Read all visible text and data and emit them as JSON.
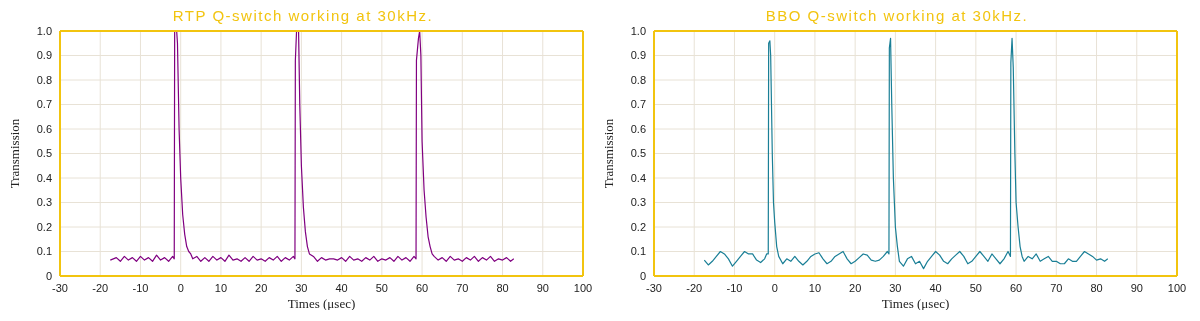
{
  "chart_data": [
    {
      "type": "line",
      "title": "RTP Q-switch working at 30kHz.",
      "xlabel": "Times (μsec)",
      "ylabel": "Transmission",
      "grid": true,
      "legend": false,
      "marker": "none",
      "line_style": "solid",
      "xlim": [
        -30,
        100
      ],
      "xticks": [
        -30,
        -20,
        -10,
        0,
        10,
        20,
        30,
        40,
        50,
        60,
        70,
        80,
        90,
        100
      ],
      "ylim": [
        0,
        1
      ],
      "yticks": [
        0,
        0.1,
        0.2,
        0.3,
        0.4,
        0.5,
        0.6,
        0.7,
        0.8,
        0.9,
        {
          "value": 1,
          "label": "1.0"
        }
      ],
      "series": [
        {
          "color": "#800080",
          "x": [
            -17.5,
            -16,
            -15,
            -14,
            -13,
            -12,
            -11,
            -10,
            -9,
            -8,
            -7,
            -6,
            -5,
            -4,
            -3,
            -2,
            -1.6,
            -1.5,
            -1,
            -0.8,
            -0.4,
            0,
            0.5,
            1,
            1.5,
            2,
            2.5,
            3,
            4,
            5,
            6,
            7,
            8,
            9,
            10,
            11,
            12,
            13,
            14,
            15,
            16,
            17,
            18,
            19,
            20,
            21,
            22,
            23,
            24,
            25,
            26,
            27,
            28,
            28.4,
            28.5,
            28.8,
            29.3,
            29.6,
            30,
            30.5,
            31,
            31.5,
            32,
            33,
            34,
            35,
            36,
            37,
            38,
            39,
            40,
            41,
            42,
            43,
            44,
            45,
            46,
            47,
            48,
            49,
            50,
            51,
            52,
            53,
            54,
            55,
            56,
            57,
            58,
            58.5,
            58.6,
            59.1,
            59.4,
            59.7,
            60,
            60.5,
            61,
            61.5,
            62,
            62.5,
            63,
            64,
            65,
            66,
            67,
            68,
            69,
            70,
            71,
            72,
            73,
            74,
            75,
            76,
            77,
            78,
            79,
            80,
            81,
            82,
            82.8
          ],
          "values": [
            0.065,
            0.075,
            0.06,
            0.08,
            0.065,
            0.075,
            0.06,
            0.08,
            0.065,
            0.075,
            0.06,
            0.085,
            0.065,
            0.075,
            0.06,
            0.08,
            0.07,
            1.0,
            1.0,
            0.95,
            0.6,
            0.4,
            0.25,
            0.17,
            0.12,
            0.1,
            0.09,
            0.07,
            0.08,
            0.06,
            0.075,
            0.06,
            0.08,
            0.065,
            0.075,
            0.06,
            0.085,
            0.065,
            0.07,
            0.06,
            0.075,
            0.06,
            0.08,
            0.065,
            0.07,
            0.06,
            0.075,
            0.065,
            0.08,
            0.06,
            0.075,
            0.065,
            0.08,
            0.07,
            0.88,
            1.0,
            1.0,
            0.7,
            0.45,
            0.28,
            0.18,
            0.12,
            0.09,
            0.08,
            0.06,
            0.075,
            0.065,
            0.07,
            0.07,
            0.065,
            0.075,
            0.06,
            0.08,
            0.065,
            0.07,
            0.06,
            0.075,
            0.065,
            0.08,
            0.06,
            0.07,
            0.065,
            0.075,
            0.06,
            0.08,
            0.065,
            0.075,
            0.06,
            0.08,
            0.07,
            0.88,
            0.97,
            1.0,
            0.9,
            0.55,
            0.35,
            0.24,
            0.16,
            0.12,
            0.09,
            0.08,
            0.065,
            0.075,
            0.06,
            0.08,
            0.065,
            0.07,
            0.06,
            0.075,
            0.065,
            0.08,
            0.06,
            0.075,
            0.065,
            0.08,
            0.06,
            0.07,
            0.065,
            0.075,
            0.06,
            0.07
          ]
        }
      ]
    },
    {
      "type": "line",
      "title": "BBO Q-switch working at 30kHz.",
      "xlabel": "Times (μsec)",
      "ylabel": "Transmission",
      "grid": true,
      "legend": false,
      "marker": "none",
      "line_style": "solid",
      "xlim": [
        -30,
        100
      ],
      "xticks": [
        -30,
        -20,
        -10,
        0,
        10,
        20,
        30,
        40,
        50,
        60,
        70,
        80,
        90,
        100
      ],
      "ylim": [
        0,
        1
      ],
      "yticks": [
        0,
        0.1,
        0.2,
        0.3,
        0.4,
        0.5,
        0.6,
        0.7,
        0.8,
        0.9,
        {
          "value": 1,
          "label": "1.0"
        }
      ],
      "series": [
        {
          "color": "#1a7f96",
          "x": [
            -17.5,
            -16.5,
            -15.5,
            -14.5,
            -13.5,
            -12.5,
            -11.5,
            -10.5,
            -9.5,
            -8.5,
            -7.5,
            -6.5,
            -5.5,
            -4.5,
            -3.5,
            -2.5,
            -2,
            -1.6,
            -1.5,
            -1.2,
            -1,
            -0.6,
            -0.3,
            0,
            0.5,
            1,
            2,
            3,
            4,
            5,
            6,
            7,
            8,
            9,
            10,
            11,
            12,
            13,
            14,
            15,
            16,
            17,
            18,
            19,
            20,
            21,
            22,
            23,
            24,
            25,
            26,
            27,
            28,
            28.4,
            28.5,
            28.8,
            29.1,
            29.5,
            30,
            30.5,
            31,
            32,
            33,
            34,
            35,
            36,
            37,
            38,
            39,
            40,
            41,
            42,
            43,
            44,
            45,
            46,
            47,
            48,
            49,
            50,
            51,
            52,
            53,
            54,
            55,
            56,
            57,
            58,
            58.6,
            58.7,
            59,
            59.3,
            59.7,
            60,
            60.5,
            61,
            61.5,
            62,
            63,
            64,
            65,
            66,
            67,
            68,
            69,
            70,
            71,
            72,
            73,
            74,
            75,
            76,
            77,
            78,
            79,
            80,
            81,
            82,
            82.8
          ],
          "values": [
            0.065,
            0.045,
            0.06,
            0.08,
            0.1,
            0.09,
            0.07,
            0.04,
            0.06,
            0.08,
            0.1,
            0.09,
            0.09,
            0.065,
            0.055,
            0.07,
            0.09,
            0.09,
            0.95,
            0.96,
            0.9,
            0.5,
            0.3,
            0.22,
            0.12,
            0.08,
            0.05,
            0.07,
            0.06,
            0.08,
            0.06,
            0.045,
            0.06,
            0.08,
            0.09,
            0.095,
            0.07,
            0.05,
            0.06,
            0.08,
            0.09,
            0.1,
            0.07,
            0.05,
            0.06,
            0.075,
            0.09,
            0.085,
            0.065,
            0.06,
            0.065,
            0.08,
            0.1,
            0.09,
            0.93,
            0.97,
            0.7,
            0.4,
            0.2,
            0.12,
            0.06,
            0.04,
            0.07,
            0.08,
            0.05,
            0.06,
            0.03,
            0.06,
            0.08,
            0.1,
            0.085,
            0.06,
            0.05,
            0.07,
            0.085,
            0.1,
            0.08,
            0.05,
            0.06,
            0.08,
            0.1,
            0.08,
            0.06,
            0.09,
            0.07,
            0.05,
            0.07,
            0.1,
            0.08,
            0.87,
            0.97,
            0.85,
            0.5,
            0.3,
            0.2,
            0.12,
            0.08,
            0.06,
            0.08,
            0.07,
            0.09,
            0.06,
            0.07,
            0.08,
            0.06,
            0.06,
            0.05,
            0.05,
            0.07,
            0.06,
            0.06,
            0.08,
            0.1,
            0.09,
            0.08,
            0.065,
            0.07,
            0.06,
            0.07
          ]
        }
      ]
    }
  ]
}
